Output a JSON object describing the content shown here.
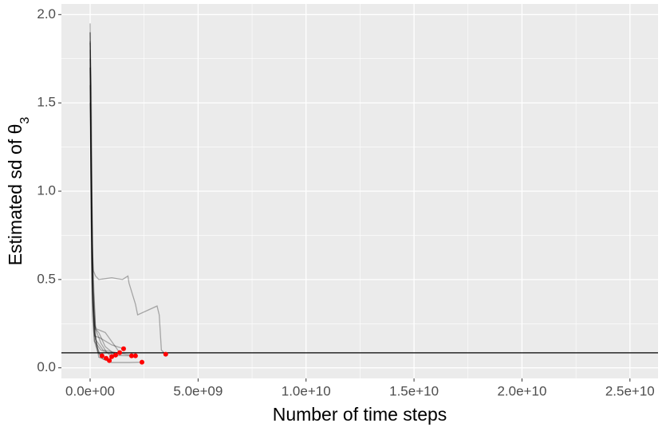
{
  "chart_data": {
    "type": "line",
    "x_label": "Number of time steps",
    "y_label": "Estimated sd of θ",
    "y_label_subscript": "3",
    "xlim": [
      -1330000000,
      26300000000
    ],
    "ylim": [
      -0.06,
      2.06
    ],
    "xticks": [
      {
        "value": 0,
        "label": "0.0e+00"
      },
      {
        "value": 5000000000,
        "label": "5.0e+09"
      },
      {
        "value": 10000000000,
        "label": "1.0e+10"
      },
      {
        "value": 15000000000,
        "label": "1.5e+10"
      },
      {
        "value": 20000000000,
        "label": "2.0e+10"
      },
      {
        "value": 25000000000,
        "label": "2.5e+10"
      }
    ],
    "yticks": [
      {
        "value": 0,
        "label": "0.0"
      },
      {
        "value": 0.5,
        "label": "0.5"
      },
      {
        "value": 1,
        "label": "1.0"
      },
      {
        "value": 1.5,
        "label": "1.5"
      },
      {
        "value": 2,
        "label": "2.0"
      }
    ],
    "grid": true,
    "line_color": "#000000",
    "line_alpha": 0.3,
    "series": [
      {
        "x": [
          0,
          30000000,
          60000000,
          100000000,
          200000000,
          350000000,
          550000000
        ],
        "values": [
          1.9,
          1.2,
          0.6,
          0.3,
          0.15,
          0.09,
          0.068
        ]
      },
      {
        "x": [
          0,
          40000000,
          80000000,
          150000000,
          300000000,
          500000000,
          740000000
        ],
        "values": [
          1.95,
          1.4,
          0.7,
          0.35,
          0.12,
          0.07,
          0.054
        ]
      },
      {
        "x": [
          0,
          50000000,
          100000000,
          200000000,
          400000000,
          600000000,
          890000000
        ],
        "values": [
          1.7,
          1.1,
          0.5,
          0.2,
          0.08,
          0.05,
          0.041
        ]
      },
      {
        "x": [
          0,
          50000000,
          120000000,
          250000000,
          500000000,
          750000000,
          1000000000
        ],
        "values": [
          1.85,
          1.3,
          0.6,
          0.22,
          0.14,
          0.09,
          0.063
        ]
      },
      {
        "x": [
          0,
          60000000,
          150000000,
          250000000,
          400000000,
          700000000,
          1180000000
        ],
        "values": [
          1.6,
          1.0,
          0.45,
          0.22,
          0.2,
          0.12,
          0.072
        ]
      },
      {
        "x": [
          0,
          40000000,
          100000000,
          200000000,
          300000000,
          700000000,
          1370000000
        ],
        "values": [
          1.8,
          1.1,
          0.5,
          0.24,
          0.22,
          0.2,
          0.086
        ]
      },
      {
        "x": [
          0,
          50000000,
          120000000,
          200000000,
          450000000,
          1000000000,
          1550000000
        ],
        "values": [
          1.84,
          1.6,
          0.4,
          0.18,
          0.17,
          0.13,
          0.108
        ]
      },
      {
        "x": [
          0,
          40000000,
          100000000,
          200000000,
          500000000,
          1200000000,
          1920000000
        ],
        "values": [
          1.75,
          0.9,
          0.45,
          0.15,
          0.1,
          0.07,
          0.068
        ]
      },
      {
        "x": [
          0,
          60000000,
          130000000,
          250000000,
          600000000,
          1500000000,
          2100000000
        ],
        "values": [
          1.5,
          0.8,
          0.35,
          0.16,
          0.1,
          0.08,
          0.068
        ]
      },
      {
        "x": [
          0,
          50000000,
          100000000,
          200000000,
          400000000,
          1000000000,
          1800000000,
          2400000000
        ],
        "values": [
          1.7,
          1.0,
          0.5,
          0.2,
          0.06,
          0.03,
          0.03,
          0.032
        ]
      },
      {
        "x": [
          0,
          50000000,
          100000000,
          150000000,
          250000000,
          400000000,
          1000000000,
          1500000000,
          1750000000,
          1800000000,
          2100000000,
          2200000000,
          3100000000,
          3200000000,
          3300000000,
          3500000000
        ],
        "values": [
          1.9,
          1.2,
          0.7,
          0.55,
          0.52,
          0.5,
          0.51,
          0.5,
          0.52,
          0.48,
          0.36,
          0.3,
          0.35,
          0.3,
          0.1,
          0.077
        ]
      }
    ],
    "points": {
      "color": "#ff0000",
      "x": [
        550000000,
        740000000,
        890000000,
        1000000000,
        1180000000,
        1370000000,
        1550000000,
        1920000000,
        2100000000,
        2400000000,
        3500000000
      ],
      "values": [
        0.068,
        0.054,
        0.041,
        0.063,
        0.072,
        0.086,
        0.108,
        0.068,
        0.068,
        0.032,
        0.077
      ]
    },
    "hline": {
      "value": 0.085,
      "color": "#000000"
    }
  }
}
